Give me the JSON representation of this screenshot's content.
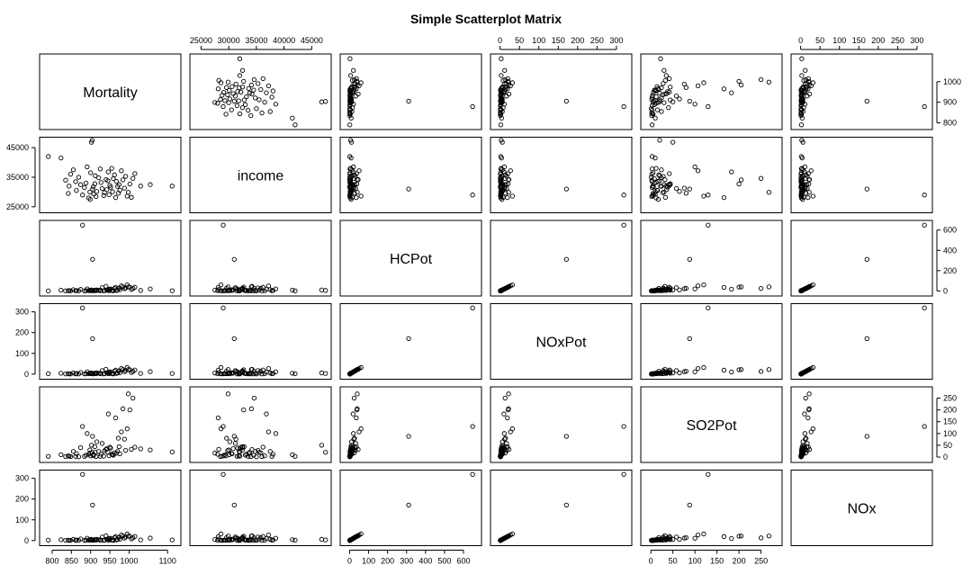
{
  "chart_data": {
    "type": "scatter",
    "title": "Simple Scatterplot Matrix",
    "variables": [
      "Mortality",
      "income",
      "HCPot",
      "NOxPot",
      "SO2Pot",
      "NOx"
    ],
    "axes": {
      "Mortality": {
        "range": [
          782,
          1120
        ],
        "ticks": [
          800,
          850,
          900,
          950,
          1000,
          1100
        ],
        "right_ticks": [
          800,
          900,
          1000
        ]
      },
      "income": {
        "range": [
          24000,
          47500
        ],
        "ticks": [
          25000,
          30000,
          35000,
          40000,
          45000
        ],
        "left_ticks": [
          25000,
          35000,
          45000
        ]
      },
      "HCPot": {
        "range": [
          -20,
          665
        ],
        "ticks": [
          0,
          100,
          200,
          300,
          400,
          500,
          600
        ],
        "right_ticks": [
          0,
          200,
          400,
          600
        ]
      },
      "NOxPot": {
        "range": [
          -10,
          325
        ],
        "ticks": [
          0,
          50,
          100,
          150,
          200,
          250,
          300
        ],
        "left_ticks": [
          0,
          100,
          200,
          300
        ]
      },
      "SO2Pot": {
        "range": [
          -10,
          285
        ],
        "ticks": [
          0,
          50,
          100,
          150,
          200,
          250
        ],
        "right_ticks": [
          0,
          50,
          100,
          150,
          200,
          250
        ]
      },
      "NOx": {
        "range": [
          -10,
          325
        ],
        "ticks": [
          0,
          50,
          100,
          150,
          200,
          250,
          300
        ],
        "left_ticks": [
          0,
          100,
          200,
          300
        ]
      }
    },
    "tick_placement": {
      "top": [
        "income",
        "NOxPot",
        "NOx"
      ],
      "bottom": [
        "Mortality",
        "HCPot",
        "SO2Pot"
      ],
      "left": [
        "income",
        "NOxPot",
        "NOx"
      ],
      "right": [
        "Mortality",
        "HCPot",
        "SO2Pot"
      ]
    },
    "observations": {
      "Mortality": [
        790,
        823,
        835,
        842,
        844,
        848,
        855,
        861,
        863,
        869,
        874,
        879,
        884,
        888,
        891,
        895,
        898,
        899,
        900,
        902,
        904,
        905,
        907,
        908,
        911,
        912,
        914,
        916,
        921,
        925,
        927,
        930,
        934,
        936,
        940,
        942,
        945,
        946,
        948,
        950,
        952,
        955,
        957,
        959,
        962,
        965,
        967,
        970,
        972,
        974,
        976,
        980,
        984,
        988,
        991,
        995,
        998,
        1002,
        1006,
        1010,
        1015,
        1030,
        1055,
        1112
      ],
      "income": [
        42000,
        41500,
        34000,
        29500,
        32000,
        36000,
        37500,
        33500,
        30500,
        35000,
        32500,
        29000,
        31500,
        33000,
        38500,
        28000,
        30000,
        27500,
        36500,
        46800,
        47500,
        31000,
        31800,
        29300,
        32800,
        35500,
        28500,
        30200,
        34800,
        37800,
        33200,
        31200,
        28800,
        29800,
        34200,
        30800,
        33800,
        36800,
        29100,
        32200,
        31600,
        38000,
        30100,
        34500,
        35800,
        28100,
        33600,
        31900,
        29600,
        32500,
        30600,
        37200,
        34100,
        31300,
        35300,
        28600,
        29900,
        32700,
        28200,
        34600,
        36200,
        32000,
        32500,
        32000
      ],
      "HCPot": [
        1,
        8,
        1,
        3,
        2,
        1,
        12,
        1,
        4,
        1,
        15,
        648,
        1,
        2,
        20,
        3,
        6,
        8,
        2,
        10,
        5,
        311,
        1,
        3,
        7,
        9,
        2,
        10,
        6,
        2,
        5,
        32,
        1,
        3,
        45,
        8,
        4,
        18,
        2,
        14,
        20,
        5,
        3,
        1,
        25,
        35,
        4,
        10,
        26,
        28,
        12,
        50,
        40,
        22,
        30,
        60,
        40,
        38,
        14,
        24,
        36,
        5,
        20,
        2
      ],
      "NOxPot": [
        2,
        4,
        1,
        2,
        1,
        1,
        6,
        1,
        3,
        1,
        8,
        319,
        1,
        2,
        11,
        2,
        3,
        5,
        2,
        6,
        3,
        171,
        1,
        2,
        4,
        5,
        2,
        6,
        4,
        2,
        3,
        17,
        1,
        2,
        23,
        5,
        3,
        10,
        2,
        8,
        11,
        3,
        2,
        1,
        14,
        19,
        3,
        6,
        14,
        16,
        7,
        27,
        22,
        12,
        17,
        32,
        22,
        21,
        8,
        13,
        20,
        3,
        12,
        3
      ],
      "SO2Pot": [
        3,
        10,
        2,
        5,
        4,
        2,
        24,
        3,
        15,
        1,
        40,
        130,
        3,
        8,
        100,
        12,
        30,
        17,
        5,
        50,
        20,
        88,
        6,
        10,
        44,
        20,
        2,
        65,
        24,
        3,
        12,
        58,
        4,
        27,
        32,
        36,
        20,
        183,
        6,
        42,
        38,
        12,
        10,
        8,
        18,
        166,
        16,
        24,
        80,
        44,
        14,
        107,
        205,
        76,
        28,
        120,
        268,
        200,
        33,
        250,
        42,
        35,
        30,
        22
      ],
      "NOx": [
        2,
        4,
        1,
        2,
        1,
        1,
        6,
        1,
        3,
        1,
        8,
        319,
        1,
        2,
        11,
        2,
        3,
        5,
        2,
        6,
        3,
        171,
        1,
        2,
        4,
        5,
        2,
        6,
        4,
        2,
        3,
        17,
        1,
        2,
        23,
        5,
        3,
        10,
        2,
        8,
        11,
        3,
        2,
        1,
        14,
        19,
        3,
        6,
        14,
        16,
        7,
        27,
        22,
        12,
        17,
        32,
        22,
        21,
        8,
        13,
        20,
        3,
        12,
        3
      ]
    }
  }
}
